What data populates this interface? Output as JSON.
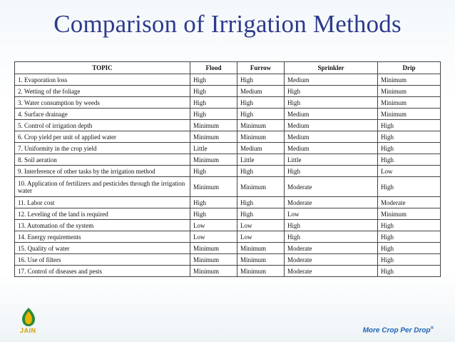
{
  "title": "Comparison of Irrigation Methods",
  "table": {
    "headers": [
      "TOPIC",
      "Flood",
      "Furrow",
      "Sprinkler",
      "Drip"
    ],
    "rows": [
      [
        "1.  Evaporation loss",
        "High",
        "High",
        "Medium",
        "Minimum"
      ],
      [
        "2.  Wetting of the foliage",
        "High",
        "Medium",
        "High",
        "Minimum"
      ],
      [
        "3.  Water consumption by weeds",
        "High",
        "High",
        "High",
        "Minimum"
      ],
      [
        "4.  Surface drainage",
        "High",
        "High",
        "Medium",
        "Minimum"
      ],
      [
        "5.  Control of irrigation depth",
        "Minimum",
        "Minimum",
        "Medium",
        "High"
      ],
      [
        "6.  Crop yield per unit of applied water",
        "Minimum",
        "Minimum",
        "Medium",
        "High"
      ],
      [
        "7.  Uniformity in the crop yield",
        "Little",
        "Medium",
        "Medium",
        "High"
      ],
      [
        "8.  Soil aeration",
        "Minimum",
        "Little",
        "Little",
        "High"
      ],
      [
        "9. Interference of other tasks by the irrigation method",
        "High",
        "High",
        "High",
        "Low"
      ],
      [
        "10. Application of fertilizers and pesticides through the irrigation water",
        "Minimum",
        "Minimum",
        "Moderate",
        "High"
      ],
      [
        "11. Labor cost",
        "High",
        "High",
        "Moderate",
        "Moderate"
      ],
      [
        "12. Leveling of the land is required",
        "High",
        "High",
        "Low",
        "Minimum"
      ],
      [
        "13. Automation of the system",
        "Low",
        "Low",
        "High",
        "High"
      ],
      [
        "14. Energy requirements",
        "Low",
        "Low",
        "High",
        "High"
      ],
      [
        "15. Quality of water",
        "Minimum",
        "Minimum",
        "Moderate",
        "High"
      ],
      [
        "16. Use of filters",
        "Minimum",
        "Minimum",
        "Moderate",
        "High"
      ],
      [
        "17. Control of diseases and pests",
        "Minimum",
        "Minimum",
        "Moderate",
        "High"
      ]
    ]
  },
  "footer": {
    "logo_text": "JAIN",
    "tagline": "More Crop Per Drop",
    "tagline_mark": "®"
  },
  "colors": {
    "title": "#2d3a8c",
    "tagline": "#1e63b8",
    "logo": "#d8a000"
  }
}
